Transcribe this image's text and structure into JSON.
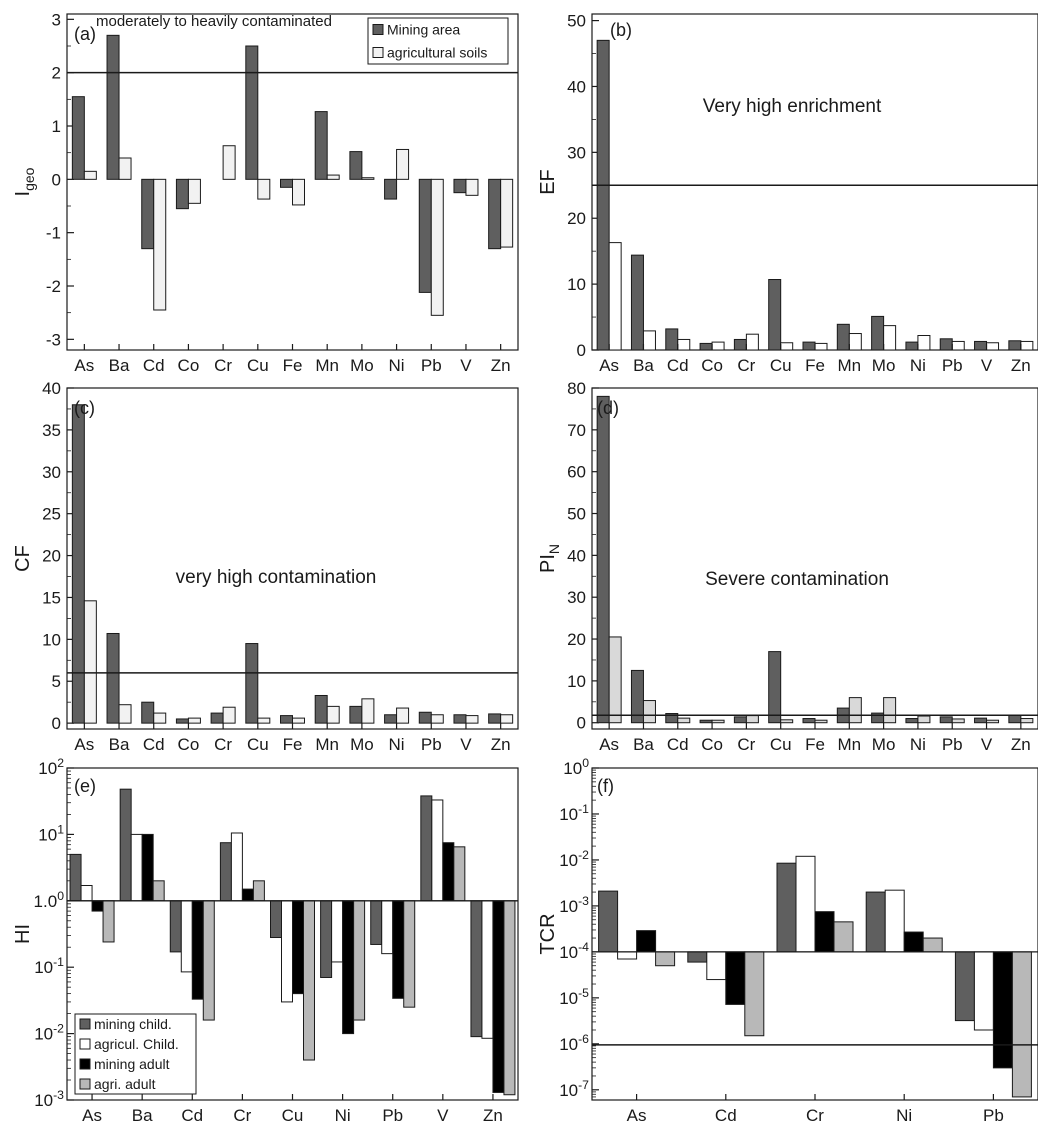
{
  "legend_colors": {
    "mining": "#5f5f5f",
    "agric": "#f2f2f2",
    "agric_child_e": "#ffffff",
    "mining_adult": "#000000",
    "agri_adult": "#b8b8b8"
  },
  "chart_data": [
    {
      "id": "a",
      "type": "bar",
      "panel_label": "(a)",
      "ylabel": "I",
      "ylabel_sub": "geo",
      "categories": [
        "As",
        "Ba",
        "Cd",
        "Co",
        "Cr",
        "Cu",
        "Fe",
        "Mn",
        "Mo",
        "Ni",
        "Pb",
        "V",
        "Zn"
      ],
      "ylim": [
        -3.2,
        3.1
      ],
      "yticks": [
        -3,
        -2,
        -1,
        0,
        1,
        2,
        3
      ],
      "baseline": 0,
      "series": [
        {
          "name": "Mining area",
          "color": "#5f5f5f",
          "values": [
            1.55,
            2.7,
            -1.3,
            -0.55,
            null,
            2.5,
            -0.15,
            1.27,
            0.52,
            -0.37,
            -2.12,
            -0.25,
            -1.3
          ]
        },
        {
          "name": "agricultural soils",
          "color": "#f2f2f2",
          "values": [
            0.15,
            0.4,
            -2.45,
            -0.45,
            0.63,
            -0.37,
            -0.48,
            0.08,
            0.03,
            0.56,
            -2.55,
            -0.3,
            -1.27
          ]
        }
      ],
      "hline": {
        "value": 2,
        "label": "moderately to heavily contaminated"
      },
      "legend": {
        "placement": "top-right",
        "entries": [
          "Mining area",
          "agricultural soils"
        ]
      }
    },
    {
      "id": "b",
      "type": "bar",
      "panel_label": "(b)",
      "ylabel": "EF",
      "categories": [
        "As",
        "Ba",
        "Cd",
        "Co",
        "Cr",
        "Cu",
        "Fe",
        "Mn",
        "Mo",
        "Ni",
        "Pb",
        "V",
        "Zn"
      ],
      "ylim": [
        0,
        51
      ],
      "yticks": [
        0,
        10,
        20,
        30,
        40,
        50
      ],
      "baseline": 0,
      "series": [
        {
          "name": "Mining area",
          "color": "#5f5f5f",
          "values": [
            47,
            14.4,
            3.2,
            1.0,
            1.6,
            10.7,
            1.2,
            3.9,
            5.1,
            1.2,
            1.7,
            1.3,
            1.4
          ]
        },
        {
          "name": "agricultural soils",
          "color": "#ffffff",
          "values": [
            16.3,
            2.9,
            1.6,
            1.2,
            2.4,
            1.1,
            1.0,
            2.5,
            3.7,
            2.2,
            1.3,
            1.1,
            1.3
          ]
        }
      ],
      "hline": {
        "value": 25,
        "label": "Very high enrichment"
      }
    },
    {
      "id": "c",
      "type": "bar",
      "panel_label": "(c)",
      "ylabel": "CF",
      "categories": [
        "As",
        "Ba",
        "Cd",
        "Co",
        "Cr",
        "Cu",
        "Fe",
        "Mn",
        "Mo",
        "Ni",
        "Pb",
        "V",
        "Zn"
      ],
      "ylim": [
        -0.7,
        40
      ],
      "yticks": [
        0,
        5,
        10,
        15,
        20,
        25,
        30,
        35,
        40
      ],
      "baseline": 0,
      "series": [
        {
          "name": "Mining area",
          "color": "#5f5f5f",
          "values": [
            38,
            10.7,
            2.5,
            0.5,
            1.2,
            9.5,
            0.9,
            3.3,
            2.0,
            1.0,
            1.3,
            1.0,
            1.1
          ]
        },
        {
          "name": "agricultural soils",
          "color": "#f2f2f2",
          "values": [
            14.6,
            2.2,
            1.2,
            0.6,
            1.9,
            0.6,
            0.6,
            2.0,
            2.9,
            1.8,
            1.0,
            0.9,
            1.0
          ]
        }
      ],
      "hline": {
        "value": 6,
        "label": "very high contamination"
      }
    },
    {
      "id": "d",
      "type": "bar",
      "panel_label": "(d)",
      "ylabel": "PI",
      "ylabel_sub": "N",
      "categories": [
        "As",
        "Ba",
        "Cd",
        "Co",
        "Cr",
        "Cu",
        "Fe",
        "Mn",
        "Mo",
        "Ni",
        "Pb",
        "V",
        "Zn"
      ],
      "ylim": [
        -1.5,
        80
      ],
      "yticks": [
        0,
        10,
        20,
        30,
        40,
        50,
        60,
        70,
        80
      ],
      "baseline": 0,
      "series": [
        {
          "name": "Mining area",
          "color": "#5f5f5f",
          "values": [
            78,
            12.5,
            2.2,
            0.6,
            1.4,
            17,
            1.0,
            3.5,
            2.3,
            1.0,
            1.4,
            1.1,
            1.8
          ]
        },
        {
          "name": "agricultural soils",
          "color": "#d9d9d9",
          "values": [
            20.5,
            5.3,
            1.1,
            0.6,
            1.7,
            0.7,
            0.6,
            6.0,
            6.0,
            1.6,
            0.9,
            0.6,
            1.0
          ]
        }
      ],
      "hline": {
        "value": 1.8,
        "label": "Severe contamination"
      }
    },
    {
      "id": "e",
      "type": "bar",
      "panel_label": "(e)",
      "ylabel": "HI",
      "yscale": "log",
      "categories": [
        "As",
        "Ba",
        "Cd",
        "Cr",
        "Cu",
        "Ni",
        "Pb",
        "V",
        "Zn"
      ],
      "ylim": [
        0.001,
        100
      ],
      "ytick_labels": [
        {
          "base": "10",
          "exp": "-3"
        },
        {
          "base": "10",
          "exp": "-2"
        },
        {
          "base": "10",
          "exp": "-1"
        },
        {
          "base": "1.0",
          "exp": "0"
        },
        {
          "base": "10",
          "exp": "1"
        },
        {
          "base": "10",
          "exp": "2"
        }
      ],
      "baseline": 1,
      "series": [
        {
          "name": "mining child.",
          "color": "#5f5f5f",
          "values": [
            5.0,
            48,
            0.17,
            7.5,
            0.28,
            0.07,
            0.22,
            38,
            0.009
          ]
        },
        {
          "name": "agricul. Child.",
          "color": "#ffffff",
          "values": [
            1.7,
            10,
            0.085,
            10.5,
            0.03,
            0.12,
            0.16,
            33,
            0.0085
          ]
        },
        {
          "name": "mining adult",
          "color": "#000000",
          "values": [
            0.7,
            10,
            0.033,
            1.5,
            0.04,
            0.01,
            0.034,
            7.5,
            0.0013
          ]
        },
        {
          "name": "agri. adult",
          "color": "#b8b8b8",
          "values": [
            0.24,
            2.0,
            0.016,
            2.0,
            0.004,
            0.016,
            0.025,
            6.5,
            0.0012
          ]
        }
      ],
      "legend": {
        "placement": "bottom-left",
        "entries": [
          "mining child.",
          "agricul. Child.",
          "mining adult",
          "agri. adult"
        ]
      }
    },
    {
      "id": "f",
      "type": "bar",
      "panel_label": "(f)",
      "ylabel": "TCR",
      "yscale": "log",
      "categories": [
        "As",
        "Cd",
        "Cr",
        "Ni",
        "Pb"
      ],
      "ylim": [
        6e-08,
        1
      ],
      "ytick_labels": [
        {
          "base": "10",
          "exp": "-7"
        },
        {
          "base": "10",
          "exp": "-6"
        },
        {
          "base": "10",
          "exp": "-5"
        },
        {
          "base": "10",
          "exp": "-4"
        },
        {
          "base": "10",
          "exp": "-3"
        },
        {
          "base": "10",
          "exp": "-2"
        },
        {
          "base": "10",
          "exp": "-1"
        },
        {
          "base": "10",
          "exp": "0"
        }
      ],
      "baseline": 0.0001,
      "series": [
        {
          "name": "mining child.",
          "color": "#5f5f5f",
          "values": [
            0.0021,
            6e-05,
            0.0085,
            0.002,
            3.2e-06
          ]
        },
        {
          "name": "agricul. Child.",
          "color": "#ffffff",
          "values": [
            7e-05,
            2.5e-05,
            0.012,
            0.0022,
            2e-06
          ]
        },
        {
          "name": "mining adult",
          "color": "#000000",
          "values": [
            0.00029,
            7.2e-06,
            0.00075,
            0.00027,
            3e-07
          ]
        },
        {
          "name": "agri. adult",
          "color": "#b8b8b8",
          "values": [
            5e-05,
            1.5e-06,
            0.00045,
            0.0002,
            7e-08
          ]
        }
      ],
      "hline": {
        "value": 9.5e-07,
        "label": ""
      }
    }
  ]
}
